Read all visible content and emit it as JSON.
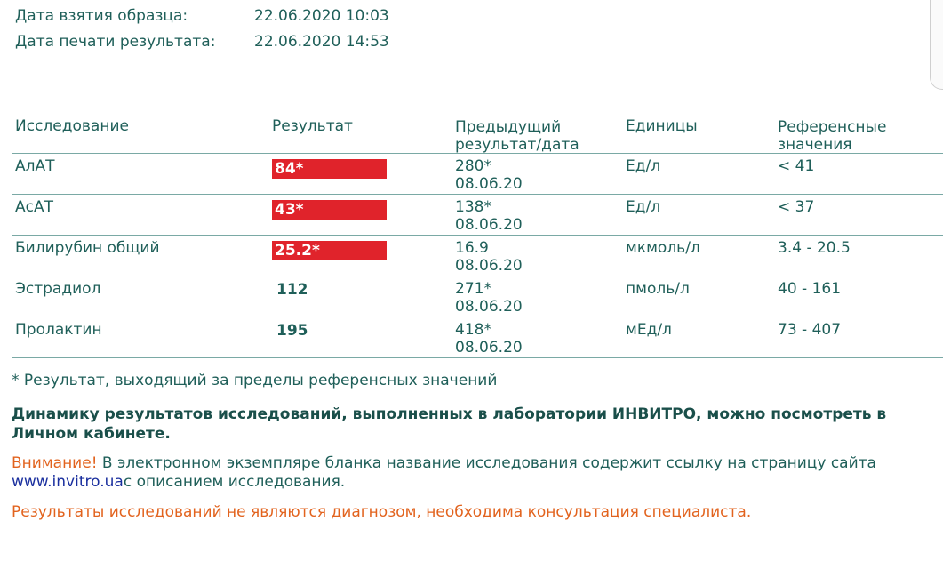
{
  "meta": {
    "sample_date_label": "Дата взятия образца:",
    "sample_date_value": "22.06.2020 10:03",
    "print_date_label": "Дата печати результата:",
    "print_date_value": "22.06.2020 14:53"
  },
  "table": {
    "headers": {
      "study": "Исследование",
      "result": "Результат",
      "previous_l1": "Предыдущий",
      "previous_l2": "результат/дата",
      "units": "Единицы",
      "reference_l1": "Референсные",
      "reference_l2": "значения"
    },
    "rows": [
      {
        "name": "АлАТ",
        "result": "84*",
        "prev_value": "280*",
        "prev_date": "08.06.20",
        "units": "Ед/л",
        "reference": "< 41"
      },
      {
        "name": "АсАТ",
        "result": "43*",
        "prev_value": "138*",
        "prev_date": "08.06.20",
        "units": "Ед/л",
        "reference": "< 37"
      },
      {
        "name": "Билирубин общий",
        "result": "25.2*",
        "prev_value": "16.9",
        "prev_date": "08.06.20",
        "units": "мкмоль/л",
        "reference": "3.4 - 20.5"
      },
      {
        "name": "Эстрадиол",
        "result": "112",
        "prev_value": "271*",
        "prev_date": "08.06.20",
        "units": "пмоль/л",
        "reference": "40 - 161"
      },
      {
        "name": "Пролактин",
        "result": "195",
        "prev_value": "418*",
        "prev_date": "08.06.20",
        "units": "мЕд/л",
        "reference": "73 - 407"
      }
    ]
  },
  "footnote": "* Результат, выходящий за пределы референсных значений",
  "dynamics": "Динамику результатов исследований, выполненных в лаборатории ИНВИТРО, можно посмотреть в Личном кабинете.",
  "warning": {
    "label": "Внимание!",
    "text": " В электронном экземпляре бланка название исследования содержит ссылку на страницу сайта ",
    "link": "www.invitro.ua",
    "text_after": "c описанием исследования."
  },
  "disclaimer": "Результаты исследований не являются диагнозом, необходима консультация специалиста.",
  "colors": {
    "flag": "#e0232b",
    "text": "#1f5f59",
    "warning": "#e2631e",
    "link": "#1a2f9e"
  }
}
